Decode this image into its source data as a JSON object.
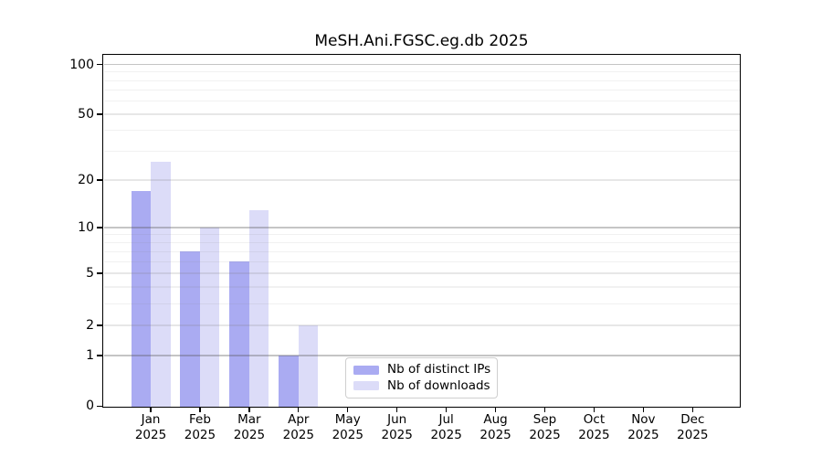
{
  "chart_data": {
    "type": "bar",
    "title": "MeSH.Ani.FGSC.eg.db 2025",
    "categories": [
      "Jan",
      "Feb",
      "Mar",
      "Apr",
      "May",
      "Jun",
      "Jul",
      "Aug",
      "Sep",
      "Oct",
      "Nov",
      "Dec"
    ],
    "category_year": "2025",
    "series": [
      {
        "name": "Nb of distinct IPs",
        "color": "#aaabf2",
        "values": [
          17,
          7,
          6,
          1,
          0,
          0,
          0,
          0,
          0,
          0,
          0,
          0
        ]
      },
      {
        "name": "Nb of downloads",
        "color": "#dcdcf8",
        "values": [
          26,
          10,
          13,
          2,
          0,
          0,
          0,
          0,
          0,
          0,
          0,
          0
        ]
      }
    ],
    "y_axis": {
      "scale": "log1p",
      "range": [
        0,
        100
      ],
      "ticks": [
        0,
        1,
        2,
        5,
        10,
        20,
        50,
        100
      ],
      "major_gridlines": [
        1,
        10,
        100
      ],
      "light_gridlines": [
        2,
        5,
        20,
        50
      ],
      "minor_gridlines": [
        3,
        4,
        6,
        7,
        8,
        9,
        30,
        40,
        60,
        70,
        80,
        90
      ]
    },
    "legend": {
      "position": "bottom-center",
      "entries": [
        "Nb of distinct IPs",
        "Nb of downloads"
      ]
    },
    "grid": true,
    "background": "#ffffff"
  }
}
